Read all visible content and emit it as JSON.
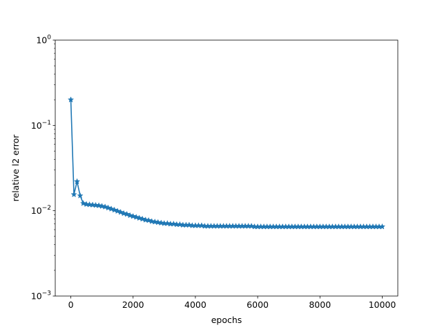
{
  "chart_data": {
    "type": "line",
    "title": "",
    "xlabel": "epochs",
    "ylabel": "relative l2 error",
    "xlim": [
      -500,
      10500
    ],
    "ylim": [
      0.001,
      1
    ],
    "yscale": "log",
    "grid": false,
    "legend": "none",
    "marker": "star",
    "color": "#1f77b4",
    "x_ticks": [
      0,
      2000,
      4000,
      6000,
      8000,
      10000
    ],
    "x_tick_labels": [
      "0",
      "2000",
      "4000",
      "6000",
      "8000",
      "10000"
    ],
    "y_ticks": [
      0.001,
      0.01,
      0.1,
      1
    ],
    "y_tick_labels": [
      {
        "base": "10",
        "exp": "−3"
      },
      {
        "base": "10",
        "exp": "−2"
      },
      {
        "base": "10",
        "exp": "−1"
      },
      {
        "base": "10",
        "exp": "0"
      }
    ],
    "series": [
      {
        "x": [
          0,
          100,
          200,
          300,
          400,
          500,
          600,
          700,
          800,
          900,
          1000,
          1100,
          1200,
          1300,
          1400,
          1500,
          1600,
          1700,
          1800,
          1900,
          2000,
          2100,
          2200,
          2300,
          2400,
          2500,
          2600,
          2700,
          2800,
          2900,
          3000,
          3100,
          3200,
          3300,
          3400,
          3500,
          3600,
          3700,
          3800,
          3900,
          4000,
          4100,
          4200,
          4300,
          4400,
          4500,
          4600,
          4700,
          4800,
          4900,
          5000,
          5100,
          5200,
          5300,
          5400,
          5500,
          5600,
          5700,
          5800,
          5900,
          6000,
          6100,
          6200,
          6300,
          6400,
          6500,
          6600,
          6700,
          6800,
          6900,
          7000,
          7100,
          7200,
          7300,
          7400,
          7500,
          7600,
          7700,
          7800,
          7900,
          8000,
          8100,
          8200,
          8300,
          8400,
          8500,
          8600,
          8700,
          8800,
          8900,
          9000,
          9100,
          9200,
          9300,
          9400,
          9500,
          9600,
          9700,
          9800,
          9900,
          10000
        ],
        "values": [
          0.2,
          0.0155,
          0.022,
          0.015,
          0.0122,
          0.0119,
          0.0118,
          0.0117,
          0.0116,
          0.0115,
          0.0113,
          0.0111,
          0.0108,
          0.0105,
          0.0102,
          0.0099,
          0.0096,
          0.0093,
          0.0091,
          0.0088,
          0.0086,
          0.0084,
          0.0082,
          0.008,
          0.0078,
          0.0077,
          0.0075,
          0.0074,
          0.0073,
          0.0072,
          0.0071,
          0.0071,
          0.007,
          0.007,
          0.0069,
          0.0069,
          0.0068,
          0.0068,
          0.0068,
          0.0067,
          0.0067,
          0.0067,
          0.0067,
          0.0066,
          0.0066,
          0.0066,
          0.0066,
          0.0066,
          0.0066,
          0.0066,
          0.0066,
          0.0066,
          0.0066,
          0.0066,
          0.0066,
          0.0066,
          0.0066,
          0.0066,
          0.0066,
          0.0065,
          0.0065,
          0.0065,
          0.0065,
          0.0065,
          0.0065,
          0.0065,
          0.0065,
          0.0065,
          0.0065,
          0.0065,
          0.0065,
          0.0065,
          0.0065,
          0.0065,
          0.0065,
          0.0065,
          0.0065,
          0.0065,
          0.0065,
          0.0065,
          0.0065,
          0.0065,
          0.0065,
          0.0065,
          0.0065,
          0.0065,
          0.0065,
          0.0065,
          0.0065,
          0.0065,
          0.0065,
          0.0065,
          0.0065,
          0.0065,
          0.0065,
          0.0065,
          0.0065,
          0.0065,
          0.0065,
          0.0065,
          0.0065
        ]
      }
    ]
  }
}
